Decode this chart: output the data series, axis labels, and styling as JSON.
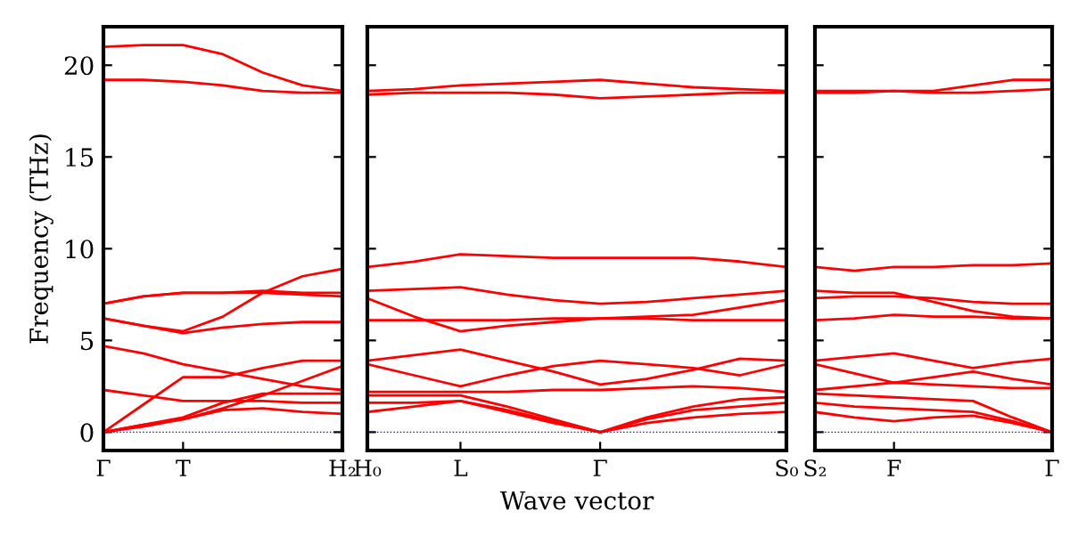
{
  "chart_data": [
    {
      "type": "line",
      "ylabel": "Frequency (THz)",
      "ylim": [
        -1,
        22.1
      ],
      "yticks": [
        0,
        5,
        10,
        15,
        20
      ],
      "categories": [
        "Γ",
        null,
        "T",
        null,
        null,
        null,
        "H₂"
      ],
      "ref_lines": [
        {
          "axis": "y",
          "value": 0,
          "color": "#0000ff",
          "line_style": "dotted"
        }
      ],
      "grid": false,
      "legend": false,
      "line_style": "solid",
      "marker": "none",
      "series": [
        {
          "color": "#ff0000",
          "values": [
            21.0,
            21.1,
            21.1,
            20.6,
            19.6,
            18.9,
            18.6
          ]
        },
        {
          "color": "#ff0000",
          "values": [
            19.2,
            19.2,
            19.1,
            18.9,
            18.6,
            18.5,
            18.5
          ]
        },
        {
          "color": "#ff0000",
          "values": [
            7.0,
            7.4,
            7.6,
            7.6,
            7.6,
            7.5,
            7.4
          ]
        },
        {
          "color": "#ff0000",
          "values": [
            7.0,
            7.4,
            7.6,
            7.6,
            7.7,
            7.6,
            7.6
          ]
        },
        {
          "color": "#ff0000",
          "values": [
            6.2,
            5.8,
            5.5,
            6.3,
            7.6,
            8.5,
            8.9
          ]
        },
        {
          "color": "#ff0000",
          "values": [
            6.2,
            5.8,
            5.4,
            5.7,
            5.9,
            6.0,
            6.0
          ]
        },
        {
          "color": "#ff0000",
          "values": [
            4.7,
            4.3,
            3.7,
            3.3,
            2.9,
            2.5,
            2.3
          ]
        },
        {
          "color": "#ff0000",
          "values": [
            0,
            1.5,
            3.0,
            3.0,
            3.5,
            3.9,
            3.9
          ]
        },
        {
          "color": "#ff0000",
          "values": [
            2.3,
            2.0,
            1.7,
            1.7,
            1.7,
            1.6,
            1.6
          ]
        },
        {
          "color": "#ff0000",
          "values": [
            0,
            0.4,
            0.7,
            1.3,
            2.0,
            2.8,
            3.6
          ]
        },
        {
          "color": "#ff0000",
          "values": [
            0,
            0.3,
            0.7,
            1.2,
            1.3,
            1.1,
            1.0
          ]
        },
        {
          "color": "#ff0000",
          "values": [
            0,
            0.4,
            0.8,
            1.6,
            2.1,
            2.1,
            2.1
          ]
        }
      ]
    },
    {
      "type": "line",
      "xlabel": "Wave vector",
      "ylim": [
        -1,
        22.1
      ],
      "yticks": [
        0,
        5,
        10,
        15,
        20
      ],
      "tick_labels": "x",
      "categories": [
        "H₀",
        null,
        "L",
        null,
        null,
        "Γ",
        null,
        null,
        null,
        "S₀"
      ],
      "ref_lines": [
        {
          "axis": "y",
          "value": 0,
          "color": "#0000ff",
          "line_style": "dotted"
        }
      ],
      "grid": false,
      "legend": false,
      "line_style": "solid",
      "marker": "none",
      "series": [
        {
          "color": "#ff0000",
          "values": [
            18.6,
            18.7,
            18.9,
            19.0,
            19.1,
            19.2,
            19.0,
            18.8,
            18.7,
            18.6
          ]
        },
        {
          "color": "#ff0000",
          "values": [
            18.4,
            18.5,
            18.5,
            18.5,
            18.4,
            18.2,
            18.3,
            18.4,
            18.5,
            18.5
          ]
        },
        {
          "color": "#ff0000",
          "values": [
            9.0,
            9.3,
            9.7,
            9.6,
            9.5,
            9.5,
            9.5,
            9.5,
            9.3,
            9.0
          ]
        },
        {
          "color": "#ff0000",
          "values": [
            7.7,
            7.8,
            7.9,
            7.5,
            7.2,
            7.0,
            7.1,
            7.3,
            7.5,
            7.7
          ]
        },
        {
          "color": "#ff0000",
          "values": [
            7.3,
            6.3,
            5.5,
            5.8,
            6.0,
            6.2,
            6.3,
            6.4,
            6.8,
            7.2
          ]
        },
        {
          "color": "#ff0000",
          "values": [
            6.1,
            6.1,
            6.1,
            6.1,
            6.2,
            6.2,
            6.2,
            6.1,
            6.1,
            6.1
          ]
        },
        {
          "color": "#ff0000",
          "values": [
            3.9,
            4.2,
            4.5,
            3.9,
            3.3,
            2.6,
            2.9,
            3.4,
            4.0,
            3.9
          ]
        },
        {
          "color": "#ff0000",
          "values": [
            3.7,
            3.1,
            2.5,
            3.1,
            3.6,
            3.9,
            3.7,
            3.5,
            3.1,
            3.7
          ]
        },
        {
          "color": "#ff0000",
          "values": [
            2.2,
            2.2,
            2.2,
            2.2,
            2.3,
            2.3,
            2.4,
            2.5,
            2.4,
            2.2
          ]
        },
        {
          "color": "#ff0000",
          "values": [
            1.6,
            1.6,
            1.7,
            1.2,
            0.6,
            0,
            0.7,
            1.2,
            1.4,
            1.6
          ]
        },
        {
          "color": "#ff0000",
          "values": [
            1.1,
            1.4,
            1.7,
            1.1,
            0.5,
            0,
            0.5,
            0.8,
            1.0,
            1.1
          ]
        },
        {
          "color": "#ff0000",
          "values": [
            2.0,
            2.0,
            2.0,
            1.4,
            0.7,
            0,
            0.8,
            1.4,
            1.8,
            1.9
          ]
        }
      ]
    },
    {
      "type": "line",
      "ylim": [
        -1,
        22.1
      ],
      "yticks": [
        0,
        5,
        10,
        15,
        20
      ],
      "tick_labels": "x",
      "categories": [
        "S₂",
        null,
        "F",
        null,
        null,
        null,
        "Γ"
      ],
      "ref_lines": [
        {
          "axis": "y",
          "value": 0,
          "color": "#0000ff",
          "line_style": "dotted"
        }
      ],
      "grid": false,
      "legend": false,
      "line_style": "solid",
      "marker": "none",
      "series": [
        {
          "color": "#ff0000",
          "values": [
            18.6,
            18.6,
            18.6,
            18.6,
            18.9,
            19.2,
            19.2
          ]
        },
        {
          "color": "#ff0000",
          "values": [
            18.5,
            18.5,
            18.6,
            18.5,
            18.5,
            18.6,
            18.7
          ]
        },
        {
          "color": "#ff0000",
          "values": [
            9.0,
            8.8,
            9.0,
            9.0,
            9.1,
            9.1,
            9.2
          ]
        },
        {
          "color": "#ff0000",
          "values": [
            7.7,
            7.6,
            7.6,
            7.1,
            6.6,
            6.3,
            6.2
          ]
        },
        {
          "color": "#ff0000",
          "values": [
            7.3,
            7.4,
            7.4,
            7.3,
            7.1,
            7.0,
            7.0
          ]
        },
        {
          "color": "#ff0000",
          "values": [
            6.1,
            6.2,
            6.4,
            6.3,
            6.3,
            6.2,
            6.2
          ]
        },
        {
          "color": "#ff0000",
          "values": [
            3.9,
            4.1,
            4.3,
            3.9,
            3.5,
            3.8,
            4.0
          ]
        },
        {
          "color": "#ff0000",
          "values": [
            3.7,
            3.2,
            2.7,
            3.0,
            3.3,
            2.9,
            2.6
          ]
        },
        {
          "color": "#ff0000",
          "values": [
            2.3,
            2.5,
            2.7,
            2.6,
            2.5,
            2.4,
            2.4
          ]
        },
        {
          "color": "#ff0000",
          "values": [
            2.1,
            2.0,
            1.9,
            1.8,
            1.7,
            0.8,
            0
          ]
        },
        {
          "color": "#ff0000",
          "values": [
            1.6,
            1.4,
            1.3,
            1.2,
            1.1,
            0.6,
            0
          ]
        },
        {
          "color": "#ff0000",
          "values": [
            1.1,
            0.8,
            0.6,
            0.8,
            0.9,
            0.5,
            0
          ]
        }
      ]
    }
  ]
}
